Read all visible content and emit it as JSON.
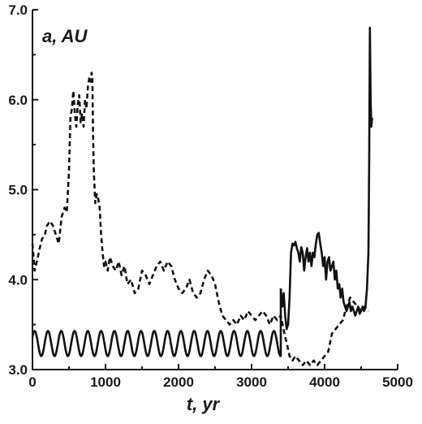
{
  "chart_data": {
    "type": "line",
    "ylabel": "a, AU",
    "xlabel": "t, yr",
    "xlim": [
      0,
      5000
    ],
    "ylim": [
      3.0,
      7.0
    ],
    "x_ticks": [
      0,
      1000,
      2000,
      3000,
      4000,
      5000
    ],
    "y_ticks": [
      3.0,
      4.0,
      5.0,
      6.0,
      7.0
    ],
    "x_tick_labels": [
      "0",
      "1000",
      "2000",
      "3000",
      "4000",
      "5000"
    ],
    "y_tick_labels": [
      "3.0",
      "4.0",
      "5.0",
      "6.0",
      "7.0"
    ],
    "grid": false,
    "series": [
      {
        "style": "dashed",
        "x": [
          0,
          30,
          60,
          100,
          130,
          170,
          200,
          240,
          280,
          320,
          360,
          400,
          440,
          470,
          500,
          520,
          540,
          560,
          580,
          600,
          620,
          640,
          660,
          680,
          700,
          720,
          740,
          760,
          780,
          800,
          810,
          820,
          830,
          840,
          860,
          880,
          900,
          920,
          940,
          960,
          980,
          1000,
          1030,
          1060,
          1100,
          1140,
          1180,
          1220,
          1260,
          1300,
          1350,
          1400,
          1450,
          1500,
          1550,
          1600,
          1650,
          1700,
          1750,
          1800,
          1850,
          1900,
          1950,
          2000,
          2050,
          2100,
          2150,
          2200,
          2250,
          2300,
          2350,
          2400,
          2450,
          2500,
          2550,
          2600,
          2650,
          2700,
          2750,
          2800,
          2850,
          2900,
          2950,
          3000,
          3050,
          3100,
          3150,
          3200,
          3250,
          3300,
          3350,
          3400,
          3450,
          3480,
          3520,
          3560,
          3600,
          3650,
          3700,
          3750,
          3800,
          3850,
          3900,
          3950,
          4000,
          4050,
          4100,
          4150,
          4200,
          4250,
          4300,
          4350,
          4400,
          4450,
          4500,
          4550,
          4600
        ],
        "y": [
          4.4,
          4.1,
          4.2,
          4.35,
          4.45,
          4.5,
          4.6,
          4.65,
          4.6,
          4.5,
          4.4,
          4.7,
          4.8,
          4.75,
          5.2,
          5.8,
          5.9,
          6.1,
          5.85,
          5.7,
          5.95,
          6.05,
          5.75,
          5.85,
          5.7,
          6.0,
          5.9,
          6.15,
          6.25,
          6.2,
          6.3,
          6.25,
          5.6,
          5.2,
          4.85,
          4.95,
          4.9,
          4.8,
          4.5,
          4.3,
          4.15,
          4.2,
          4.1,
          4.25,
          4.15,
          4.1,
          4.2,
          4.05,
          4.15,
          3.95,
          4.0,
          3.85,
          3.9,
          4.1,
          4.05,
          3.95,
          4.05,
          4.15,
          4.2,
          4.1,
          4.2,
          4.15,
          4.0,
          3.9,
          3.85,
          3.9,
          4.0,
          3.85,
          3.8,
          3.85,
          4.0,
          4.1,
          4.05,
          3.95,
          3.75,
          3.6,
          3.55,
          3.5,
          3.55,
          3.5,
          3.6,
          3.55,
          3.65,
          3.6,
          3.55,
          3.6,
          3.65,
          3.6,
          3.5,
          3.6,
          3.55,
          3.6,
          3.4,
          3.3,
          3.15,
          3.1,
          3.15,
          3.1,
          3.05,
          3.1,
          3.05,
          3.1,
          3.05,
          3.1,
          3.15,
          3.2,
          3.4,
          3.45,
          3.5,
          3.55,
          3.7,
          3.8,
          3.75,
          3.7,
          3.65,
          3.7,
          3.65
        ]
      },
      {
        "style": "solid",
        "x": [
          3400,
          3420,
          3440,
          3460,
          3480,
          3500,
          3520,
          3540,
          3560,
          3580,
          3600,
          3620,
          3640,
          3660,
          3680,
          3700,
          3720,
          3740,
          3760,
          3780,
          3800,
          3820,
          3840,
          3860,
          3880,
          3900,
          3920,
          3940,
          3960,
          3980,
          4000,
          4020,
          4040,
          4060,
          4080,
          4100,
          4120,
          4140,
          4160,
          4180,
          4200,
          4220,
          4240,
          4260,
          4280,
          4300,
          4320,
          4340,
          4360,
          4380,
          4400,
          4420,
          4440,
          4460,
          4480,
          4500,
          4520,
          4540,
          4560,
          4580,
          4600,
          4610,
          4620,
          4630,
          4640,
          4650
        ],
        "y": [
          3.9,
          3.7,
          3.85,
          3.6,
          3.45,
          3.5,
          3.8,
          4.3,
          4.4,
          4.38,
          4.42,
          4.35,
          4.3,
          4.2,
          4.36,
          4.3,
          4.1,
          4.25,
          4.35,
          4.2,
          4.3,
          4.15,
          4.3,
          4.25,
          4.4,
          4.5,
          4.52,
          4.4,
          4.3,
          4.15,
          4.25,
          4.0,
          4.2,
          4.25,
          4.1,
          4.15,
          4.2,
          4.0,
          4.1,
          3.9,
          3.95,
          3.8,
          3.9,
          3.75,
          3.7,
          3.65,
          3.7,
          3.75,
          3.65,
          3.7,
          3.65,
          3.6,
          3.65,
          3.7,
          3.62,
          3.65,
          3.7,
          3.65,
          3.7,
          3.9,
          4.3,
          5.3,
          6.8,
          6.0,
          5.7,
          5.8
        ]
      }
    ]
  }
}
